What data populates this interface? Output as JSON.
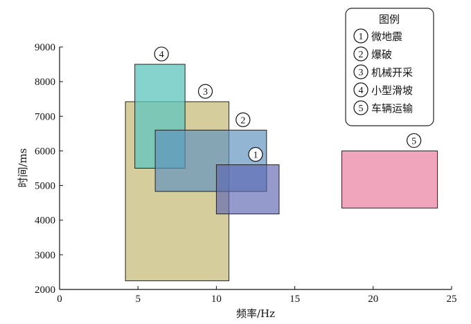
{
  "chart_data": {
    "type": "rectangle-region",
    "xlabel": "频率/Hz",
    "ylabel": "时间/ms",
    "xlim": [
      0,
      25
    ],
    "ylim": [
      2000,
      9000
    ],
    "xticks": [
      0,
      5,
      10,
      15,
      20,
      25
    ],
    "yticks": [
      2000,
      3000,
      4000,
      5000,
      6000,
      7000,
      8000,
      9000
    ],
    "grid": false,
    "legend_position": "top-right",
    "legend": {
      "title": "图例",
      "items": [
        {
          "marker": "1",
          "label": "微地震"
        },
        {
          "marker": "2",
          "label": "爆破"
        },
        {
          "marker": "3",
          "label": "机械开采"
        },
        {
          "marker": "4",
          "label": "小型滑坡"
        },
        {
          "marker": "5",
          "label": "车辆运输"
        }
      ]
    },
    "regions": [
      {
        "marker": "3",
        "x": [
          4.2,
          10.8
        ],
        "y": [
          2250,
          7420
        ],
        "color": "#c4b873",
        "opacity": 0.7
      },
      {
        "marker": "4",
        "x": [
          4.8,
          8.0
        ],
        "y": [
          5500,
          8500
        ],
        "color": "#5ec4bd",
        "opacity": 0.75
      },
      {
        "marker": "2",
        "x": [
          6.1,
          13.2
        ],
        "y": [
          4830,
          6600
        ],
        "color": "#5f92c0",
        "opacity": 0.68
      },
      {
        "marker": "1",
        "x": [
          10.0,
          14.0
        ],
        "y": [
          4180,
          5600
        ],
        "color": "#5a64b0",
        "opacity": 0.65
      },
      {
        "marker": "5",
        "x": [
          18.0,
          24.1
        ],
        "y": [
          4350,
          6000
        ],
        "color": "#ec8fac",
        "opacity": 0.8
      }
    ]
  }
}
